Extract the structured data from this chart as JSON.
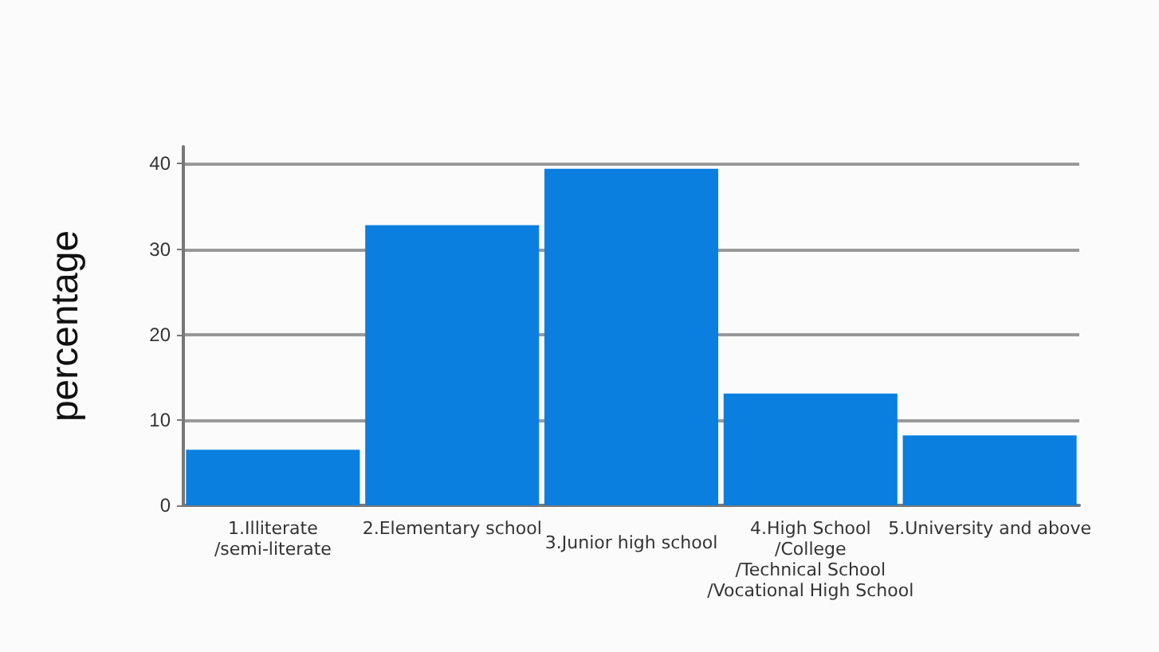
{
  "chart_data": {
    "type": "bar",
    "ylabel": "percentage",
    "categories": [
      "1.Illiterate\n/semi-literate",
      "2.Elementary school",
      "3.Junior high school",
      "4.High School\n/College\n/Technical School\n/Vocational High School",
      "5.University and above"
    ],
    "values": [
      6.5,
      32.8,
      39.4,
      13.1,
      8.2
    ],
    "color": "#0a7fe0",
    "ylim": [
      0,
      42
    ],
    "yticks": [
      0,
      10,
      20,
      30,
      40
    ],
    "grid": "y"
  }
}
